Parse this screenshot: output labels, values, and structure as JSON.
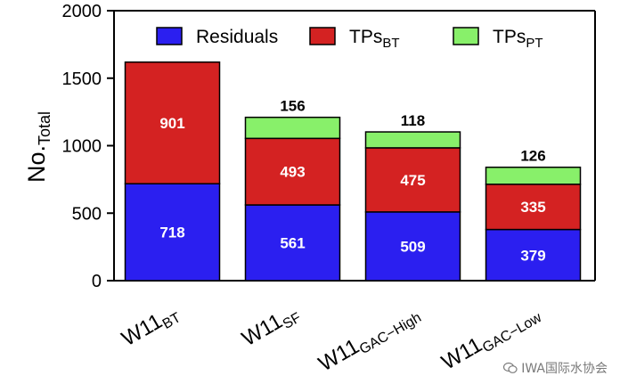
{
  "chart_data": {
    "type": "bar",
    "stacked": true,
    "title": "",
    "xlabel": "",
    "ylabel": {
      "main": "No.",
      "sub": "Total"
    },
    "ylim": [
      0,
      2000
    ],
    "yticks": [
      0,
      500,
      1000,
      1500,
      2000
    ],
    "categories": [
      {
        "main": "W11",
        "sub": "BT"
      },
      {
        "main": "W11",
        "sub": "SF"
      },
      {
        "main": "W11",
        "sub": "GAC−High"
      },
      {
        "main": "W11",
        "sub": "GAC−Low"
      }
    ],
    "series": [
      {
        "name": "Residuals",
        "legend_main": "Residuals",
        "legend_sub": "",
        "color": "#2b1ff0",
        "values": [
          718,
          561,
          509,
          379
        ],
        "labels": [
          "718",
          "561",
          "509",
          "379"
        ]
      },
      {
        "name": "TPsBT",
        "legend_main": "TPs",
        "legend_sub": "BT",
        "color": "#d42222",
        "values": [
          901,
          493,
          475,
          335
        ],
        "labels": [
          "901",
          "493",
          "475",
          "335"
        ]
      },
      {
        "name": "TPsPT",
        "legend_main": "TPs",
        "legend_sub": "PT",
        "color": "#88f06a",
        "values": [
          0,
          156,
          118,
          126
        ],
        "labels": [
          "",
          "156",
          "118",
          "126"
        ]
      }
    ],
    "legend_position": "top",
    "grid": false
  },
  "watermark": {
    "text": "IWA国际水协会",
    "icon": "wechat-logo-icon"
  }
}
